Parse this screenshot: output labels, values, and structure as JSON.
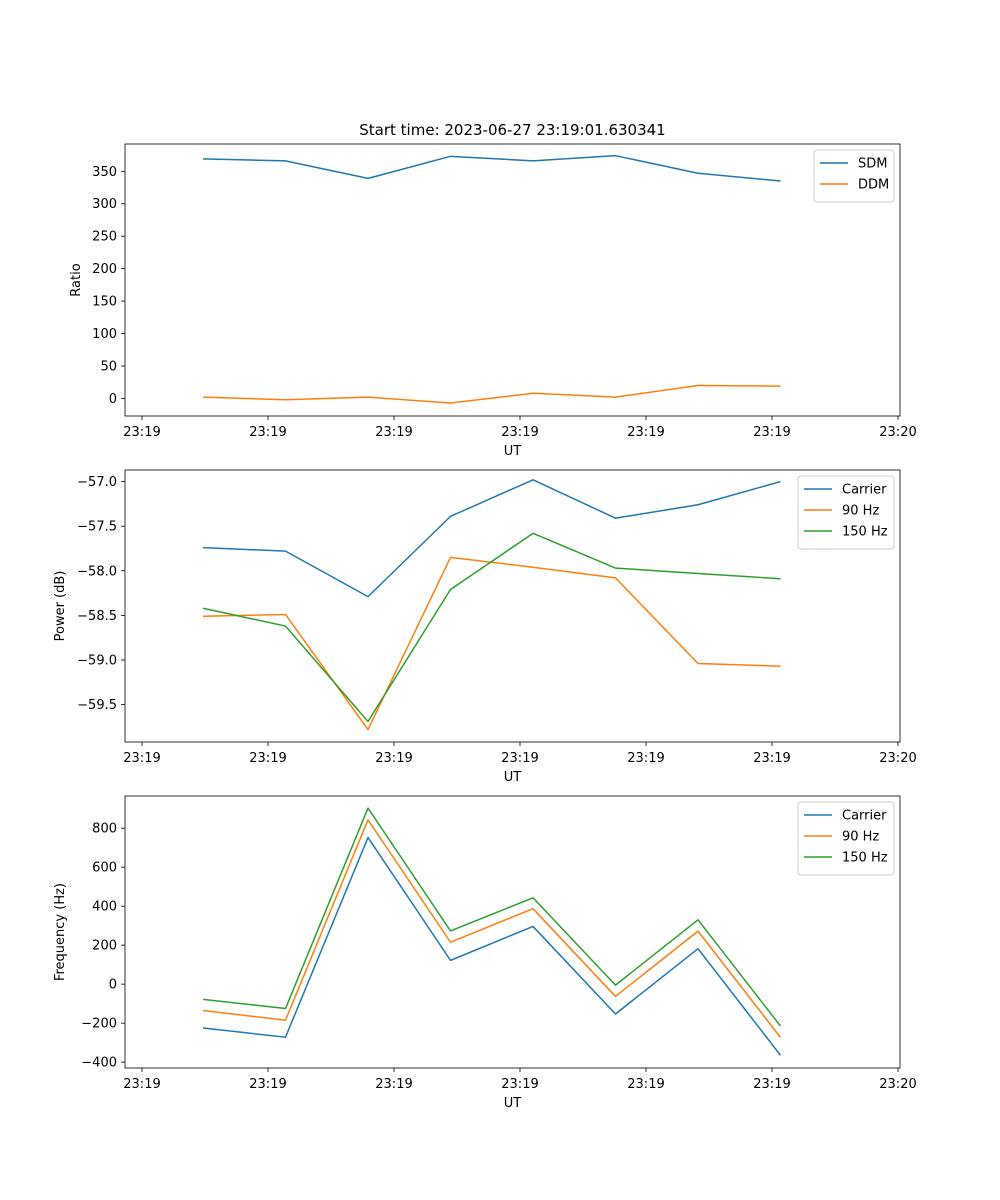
{
  "chart_data": [
    {
      "type": "line",
      "title": "Start time: 2023-06-27 23:19:01.630341",
      "xlabel": "UT",
      "ylabel": "Ratio",
      "x_tick_labels": [
        "23:19",
        "23:19",
        "23:19",
        "23:19",
        "23:19",
        "23:19",
        "23:20"
      ],
      "y_ticks": [
        0,
        50,
        100,
        150,
        200,
        250,
        300,
        350
      ],
      "y_tick_labels": [
        "0",
        "50",
        "100",
        "150",
        "200",
        "250",
        "300",
        "350"
      ],
      "ylim": [
        -27,
        392
      ],
      "grid": false,
      "legend_position": "top-right",
      "series": [
        {
          "name": "SDM",
          "color": "#1f77b4",
          "values": [
            369,
            366,
            339,
            373,
            366,
            374,
            347,
            335
          ]
        },
        {
          "name": "DDM",
          "color": "#ff7f0e",
          "values": [
            2,
            -2,
            2,
            -7,
            8,
            2,
            20,
            19
          ]
        }
      ]
    },
    {
      "type": "line",
      "title": "",
      "xlabel": "UT",
      "ylabel": "Power (dB)",
      "x_tick_labels": [
        "23:19",
        "23:19",
        "23:19",
        "23:19",
        "23:19",
        "23:19",
        "23:20"
      ],
      "y_ticks": [
        -59.5,
        -59.0,
        -58.5,
        -58.0,
        -57.5,
        -57.0
      ],
      "y_tick_labels": [
        "−59.5",
        "−59.0",
        "−58.5",
        "−58.0",
        "−57.5",
        "−57.0"
      ],
      "ylim": [
        -59.92,
        -56.87
      ],
      "grid": false,
      "legend_position": "top-right",
      "series": [
        {
          "name": "Carrier",
          "color": "#1f77b4",
          "values": [
            -57.74,
            -57.78,
            -58.29,
            -57.39,
            -56.98,
            -57.41,
            -57.26,
            -57.0
          ]
        },
        {
          "name": "90 Hz",
          "color": "#ff7f0e",
          "values": [
            -58.51,
            -58.49,
            -59.78,
            -57.85,
            -57.96,
            -58.08,
            -59.04,
            -59.07
          ]
        },
        {
          "name": "150 Hz",
          "color": "#2ca02c",
          "values": [
            -58.42,
            -58.62,
            -59.69,
            -58.21,
            -57.58,
            -57.97,
            -58.03,
            -58.09
          ]
        }
      ]
    },
    {
      "type": "line",
      "title": "",
      "xlabel": "UT",
      "ylabel": "Frequency (Hz)",
      "x_tick_labels": [
        "23:19",
        "23:19",
        "23:19",
        "23:19",
        "23:19",
        "23:19",
        "23:20"
      ],
      "y_ticks": [
        -400,
        -200,
        0,
        200,
        400,
        600,
        800
      ],
      "y_tick_labels": [
        "−400",
        "−200",
        "0",
        "200",
        "400",
        "600",
        "800"
      ],
      "ylim": [
        -430,
        965
      ],
      "grid": false,
      "legend_position": "top-right",
      "series": [
        {
          "name": "Carrier",
          "color": "#1f77b4",
          "values": [
            -225,
            -272,
            752,
            122,
            296,
            -153,
            182,
            -365
          ]
        },
        {
          "name": "90 Hz",
          "color": "#ff7f0e",
          "values": [
            -135,
            -185,
            843,
            215,
            387,
            -63,
            272,
            -273
          ]
        },
        {
          "name": "150 Hz",
          "color": "#2ca02c",
          "values": [
            -78,
            -125,
            903,
            273,
            443,
            -5,
            330,
            -215
          ]
        }
      ]
    }
  ]
}
